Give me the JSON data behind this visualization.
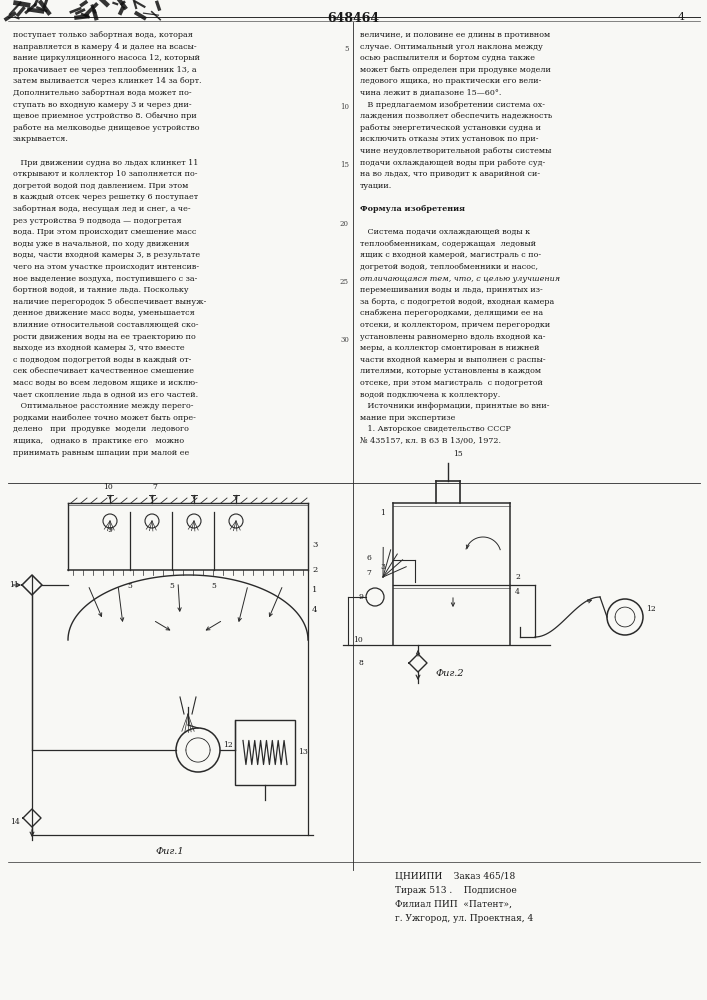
{
  "page_number_left": "3",
  "page_number_center": "648464",
  "page_number_right": "4",
  "text_left_col": [
    "поступает только забортная вода, которая",
    "направляется в камеру 4 и далее на всасы-",
    "вание циркуляционного насоса 12, который",
    "прокачивает ее через теплообменник 13, а",
    "затем выливается через клинкет 14 за борт.",
    "Дополнительно забортная вода может по-",
    "ступать во входную камеру 3 и через дни-",
    "щевое приемное устройство 8. Обычно при",
    "работе на мелководье днищевое устройство",
    "закрывается.",
    "",
    "   При движении судна во льдах клинкет 11",
    "открывают и коллектор 10 заполняется по-",
    "догретой водой под давлением. При этом",
    "в каждый отсек через решетку 6 поступает",
    "забортная вода, несущая лед и снег, а че-",
    "рез устройства 9 подвода — подогретая",
    "вода. При этом происходит смешение масс",
    "воды уже в начальной, по ходу движения",
    "воды, части входной камеры 3, в результате",
    "чего на этом участке происходит интенсив-",
    "ное выделение воздуха, поступившего с за-",
    "бортной водой, и таяние льда. Поскольку",
    "наличие перегородок 5 обеспечивает вынуж-",
    "денное движение масс воды, уменьшается",
    "влияние относительной составляющей ско-",
    "рости движения воды на ее траекторию по",
    "выходе из входной камеры 3, что вместе",
    "с подводом подогретой воды в каждый от-",
    "сек обеспечивает качественное смешение",
    "масс воды во всем ледовом ящике и исклю-",
    "чает скопление льда в одной из его частей.",
    "   Оптимальное расстояние между перего-",
    "родками наиболее точно может быть опре-",
    "делено   при  продувке  модели  ледового",
    "ящика,   однако в  практике его   можно",
    "принимать равным шпации при малой ее"
  ],
  "text_right_col": [
    "величине, и половине ее длины в противном",
    "случае. Оптимальный угол наклона между",
    "осью распылителя и бортом судна также",
    "может быть определен при продувке модели",
    "ледового ящика, но практически его вели-",
    "чина лежит в диапазоне 15—60°.",
    "   В предлагаемом изобретении система ох-",
    "лаждения позволяет обеспечить надежность",
    "работы энергетической установки судна и",
    "исключить отказы этих установок по при-",
    "чине неудовлетворительной работы системы",
    "подачи охлаждающей воды при работе суд-",
    "на во льдах, что приводит к аварийной си-",
    "туации.",
    "",
    "Формула изобретения",
    "",
    "   Система подачи охлаждающей воды к",
    "теплообменникам, содержащая  ледовый",
    "ящик с входной камерой, магистраль с по-",
    "догретой водой, теплообменники и насос,",
    "отличающаяся тем, что, с целью улучшения",
    "перемешивания воды и льда, принятых из-",
    "за борта, с подогретой водой, входная камера",
    "снабжена перегородками, делящими ее на",
    "отсеки, и коллектором, причем перегородки",
    "установлены равномерно вдоль входной ка-",
    "меры, а коллектор смонтирован в нижней",
    "части входной камеры и выполнен с распы-",
    "лителями, которые установлены в каждом",
    "отсеке, при этом магистраль  с подогретой",
    "водой подключена к коллектору.",
    "   Источники информации, принятые во вни-",
    "мание при экспертизе",
    "   1. Авторское свидетельство СССР",
    "№ 435157, кл. В 63 В 13/00, 1972."
  ],
  "fig1_label": "Фиг.1",
  "fig2_label": "Фиг.2",
  "footer_line1": "ЦНИИПИ    Заказ 465/18",
  "footer_line2": "Тираж 513 .    Подписное",
  "footer_line3": "Филиал ПИП  «Патент»,",
  "footer_line4": "г. Ужгород, ул. Проектная, 4",
  "bg_color": "#f8f8f5",
  "text_color": "#1a1a1a",
  "line_color": "#2a2a2a"
}
